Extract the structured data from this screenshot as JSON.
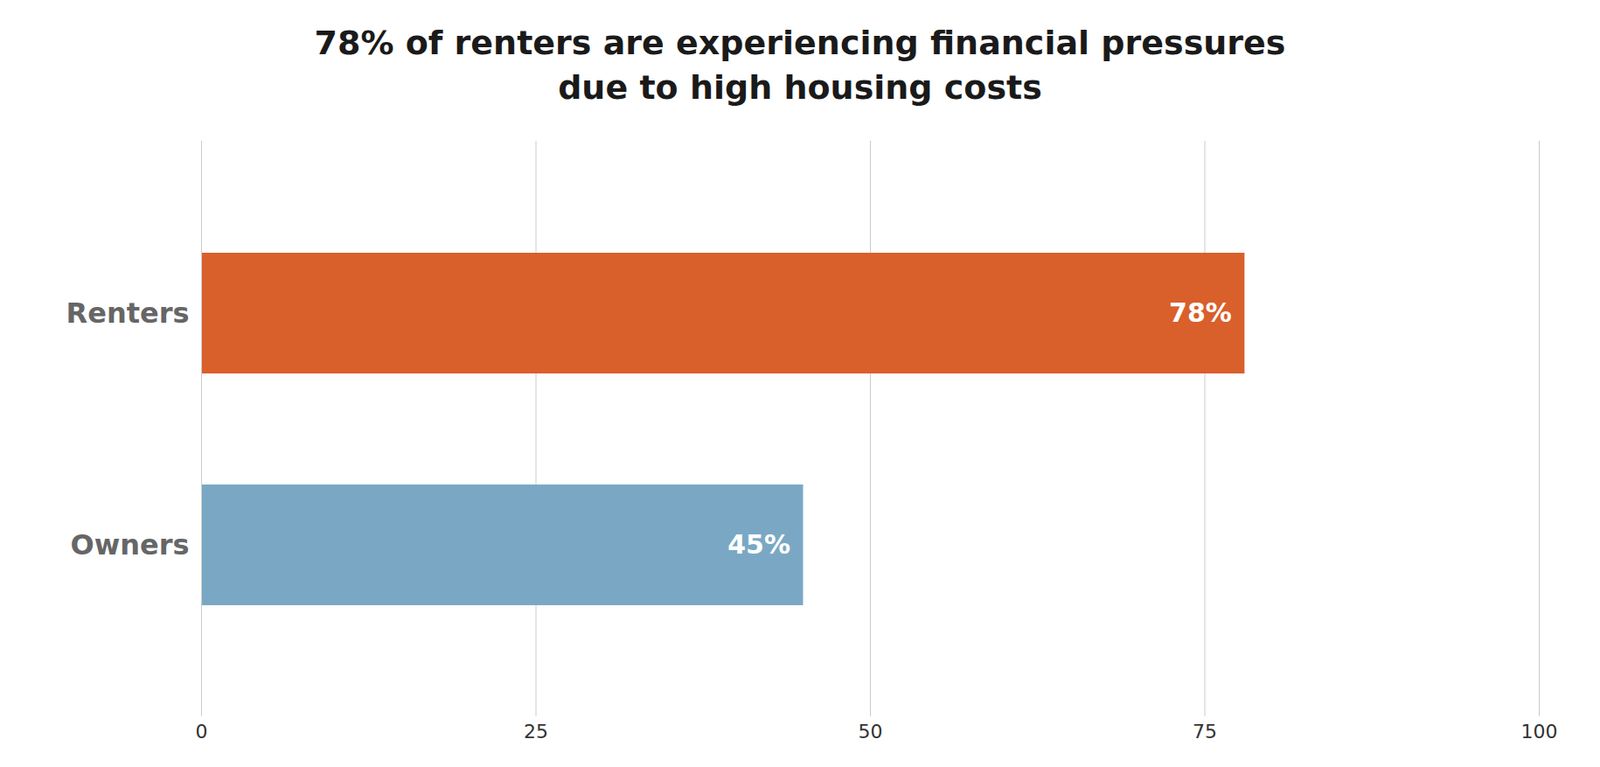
{
  "chart_data": {
    "type": "bar",
    "orientation": "horizontal",
    "title": "78% of renters are experiencing financial pressures\ndue to high housing costs",
    "categories": [
      "Renters",
      "Owners"
    ],
    "values": [
      78,
      45
    ],
    "value_labels": [
      "78%",
      "45%"
    ],
    "data_labels": true,
    "colors": [
      "#d95f2b",
      "#7aa8c4"
    ],
    "xlim": [
      0,
      100
    ],
    "xticks": [
      0,
      25,
      50,
      75,
      100
    ],
    "grid": true
  }
}
